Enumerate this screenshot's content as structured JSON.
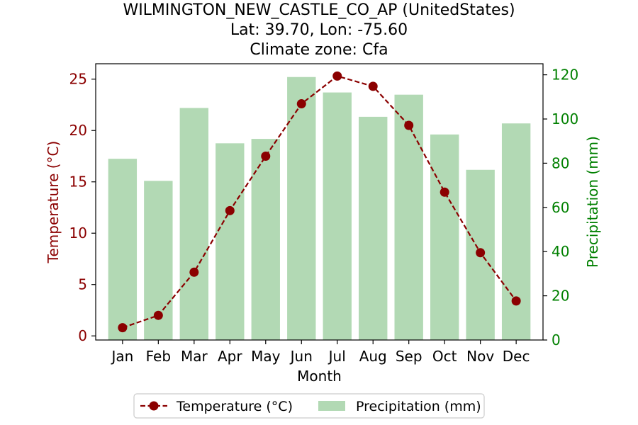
{
  "chart_data": {
    "type": "bar+line",
    "title_lines": [
      "WILMINGTON_NEW_CASTLE_CO_AP (UnitedStates)",
      "Lat: 39.70, Lon: -75.60",
      "Climate zone: Cfa"
    ],
    "categories": [
      "Jan",
      "Feb",
      "Mar",
      "Apr",
      "May",
      "Jun",
      "Jul",
      "Aug",
      "Sep",
      "Oct",
      "Nov",
      "Dec"
    ],
    "xlabel": "Month",
    "y_left_label": "Temperature (°C)",
    "y_right_label": "Precipitation (mm)",
    "y_left_ticks": [
      0,
      5,
      10,
      15,
      20,
      25
    ],
    "y_right_ticks": [
      0,
      20,
      40,
      60,
      80,
      100,
      120
    ],
    "y_left_lim": [
      -0.4,
      26.5
    ],
    "y_right_lim": [
      0,
      125
    ],
    "series": [
      {
        "name": "Temperature (°C)",
        "axis": "left",
        "kind": "line",
        "color": "#8b0000",
        "values": [
          0.8,
          2.0,
          6.2,
          12.2,
          17.5,
          22.6,
          25.3,
          24.3,
          20.5,
          14.0,
          8.1,
          3.4
        ]
      },
      {
        "name": "Precipitation (mm)",
        "axis": "right",
        "kind": "bar",
        "color": "#b2d9b4",
        "values": [
          82,
          72,
          105,
          89,
          91,
          119,
          112,
          101,
          111,
          93,
          77,
          98
        ]
      }
    ],
    "left_axis_color": "#8b0000",
    "right_axis_color": "#008000",
    "legend_position": "bottom-center"
  }
}
